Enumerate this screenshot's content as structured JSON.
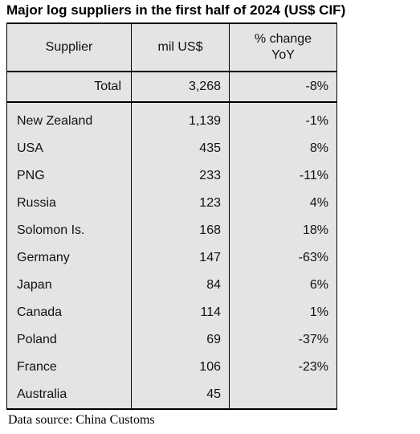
{
  "title": "Major log suppliers in the first half of 2024 (US$ CIF)",
  "source": "Data source: China Customs",
  "chart_data": {
    "type": "table",
    "title": "Major log suppliers in the first half of 2024 (US$ CIF)",
    "columns": [
      "Supplier",
      "mil US$",
      "% change YoY"
    ],
    "total": {
      "label": "Total",
      "value": "3,268",
      "change": "-8%"
    },
    "rows": [
      {
        "supplier": "New Zealand",
        "value": "1,139",
        "change": "-1%"
      },
      {
        "supplier": "USA",
        "value": "435",
        "change": "8%"
      },
      {
        "supplier": "PNG",
        "value": "233",
        "change": "-11%"
      },
      {
        "supplier": "Russia",
        "value": "123",
        "change": "4%"
      },
      {
        "supplier": "Solomon Is.",
        "value": "168",
        "change": "18%"
      },
      {
        "supplier": "Germany",
        "value": "147",
        "change": "-63%"
      },
      {
        "supplier": "Japan",
        "value": "84",
        "change": "6%"
      },
      {
        "supplier": "Canada",
        "value": "114",
        "change": "1%"
      },
      {
        "supplier": "Poland",
        "value": "69",
        "change": "-37%"
      },
      {
        "supplier": "France",
        "value": "106",
        "change": "-23%"
      },
      {
        "supplier": "Australia",
        "value": "45",
        "change": ""
      }
    ]
  }
}
